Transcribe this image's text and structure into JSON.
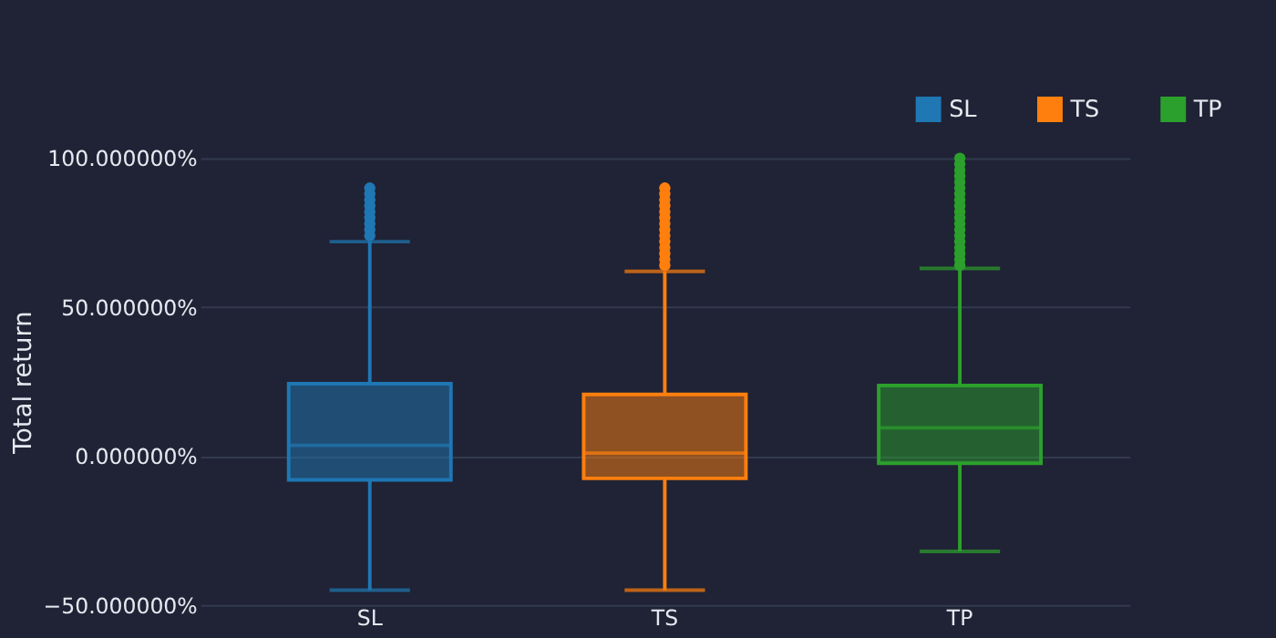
{
  "chart_data": {
    "type": "box",
    "ylabel": "Total return",
    "categories": [
      "SL",
      "TS",
      "TP"
    ],
    "series": [
      {
        "name": "SL",
        "color": "#1f77b4",
        "boxes": [
          {
            "low": -45,
            "q1": -8,
            "median": 3.6,
            "q3": 24.3,
            "high": 72,
            "outliers": [
              74,
              76,
              78,
              80,
              82,
              84,
              86,
              88,
              90
            ]
          },
          null,
          null
        ]
      },
      {
        "name": "TS",
        "color": "#ff7f0e",
        "boxes": [
          null,
          {
            "low": -45,
            "q1": -7.5,
            "median": 1,
            "q3": 20.7,
            "high": 62,
            "outliers": [
              64,
              66,
              68,
              70,
              72,
              74,
              76,
              78,
              80,
              82,
              84,
              86,
              88,
              90
            ]
          },
          null
        ]
      },
      {
        "name": "TP",
        "color": "#2ca02c",
        "boxes": [
          null,
          null,
          {
            "low": -32,
            "q1": -2.4,
            "median": 9.5,
            "q3": 23.7,
            "high": 63,
            "outliers": [
              64,
              66,
              68,
              70,
              72,
              74,
              76,
              78,
              80,
              82,
              84,
              86,
              88,
              90,
              92,
              94,
              96,
              98,
              100
            ]
          }
        ]
      }
    ],
    "ylim": [
      -50,
      100
    ],
    "yticks": [
      {
        "value": -50,
        "label": "−50.000000%"
      },
      {
        "value": 0,
        "label": "0.000000%"
      },
      {
        "value": 50,
        "label": "50.000000%"
      },
      {
        "value": 100,
        "label": "100.000000%"
      }
    ],
    "grid": "y",
    "legend": "top right"
  }
}
